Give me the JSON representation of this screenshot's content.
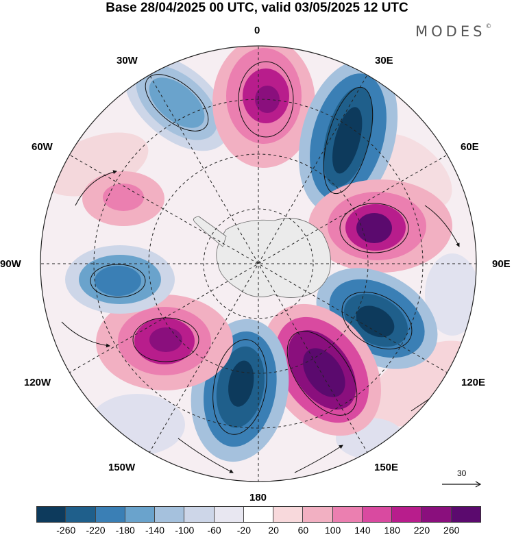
{
  "title": "Base 28/04/2025 00 UTC, valid 03/05/2025 12 UTC",
  "logo": "MODES",
  "logo_mark": "©",
  "lon_labels": {
    "l0": "0",
    "l30e": "30E",
    "l60e": "60E",
    "l90e": "90E",
    "l120e": "120E",
    "l150e": "150E",
    "l180": "180",
    "l150w": "150W",
    "l120w": "120W",
    "l90w": "90W",
    "l60w": "60W",
    "l30w": "30W"
  },
  "vector_scale": "30",
  "colorbar": {
    "colors": [
      "#0d3a5c",
      "#1f5f8b",
      "#3a7fb5",
      "#6aa3cc",
      "#a5c1dd",
      "#cdd6e8",
      "#e8e7f1",
      "#ffffff",
      "#f8d9dc",
      "#f2b0c2",
      "#eb7fb0",
      "#d94aa0",
      "#b81d8c",
      "#8a0f7d",
      "#5b0a6e"
    ],
    "ticks": [
      "-260",
      "-220",
      "-180",
      "-140",
      "-100",
      "-60",
      "-20",
      "20",
      "60",
      "100",
      "140",
      "180",
      "220",
      "260"
    ]
  },
  "icons": {
    "vector-arrow": "arrow-right-icon"
  }
}
